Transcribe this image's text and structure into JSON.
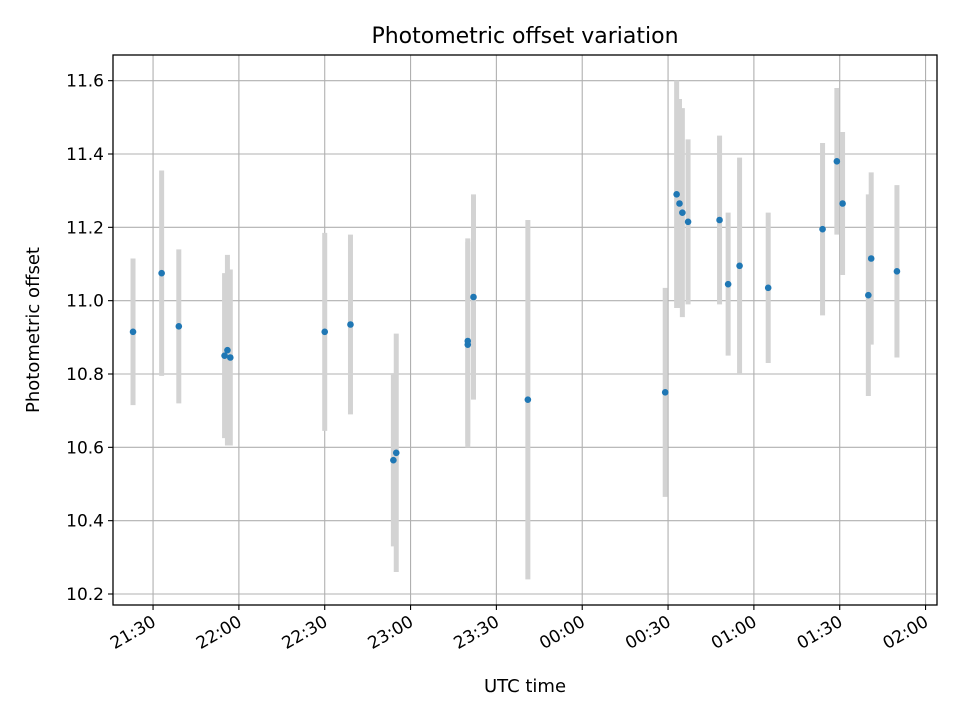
{
  "chart_data": {
    "type": "scatter",
    "title": "Photometric offset variation",
    "xlabel": "UTC time",
    "ylabel": "Photometric offset",
    "x_ticks": [
      "21:30",
      "22:00",
      "22:30",
      "23:00",
      "23:30",
      "00:00",
      "00:30",
      "01:00",
      "01:30",
      "02:00"
    ],
    "y_ticks": [
      "10.2",
      "10.4",
      "10.6",
      "10.8",
      "11.0",
      "11.2",
      "11.4",
      "11.6"
    ],
    "xlim": [
      "21:16",
      "02:04"
    ],
    "ylim": [
      10.17,
      11.67
    ],
    "grid": true,
    "marker_color": "#1f77b4",
    "errorbar_color": "#d3d3d3",
    "points": [
      {
        "x": "21:23",
        "y": 10.915,
        "err": 0.2
      },
      {
        "x": "21:33",
        "y": 11.075,
        "err": 0.28
      },
      {
        "x": "21:39",
        "y": 10.93,
        "err": 0.21
      },
      {
        "x": "21:55",
        "y": 10.85,
        "err": 0.225
      },
      {
        "x": "21:56",
        "y": 10.865,
        "err": 0.26
      },
      {
        "x": "21:57",
        "y": 10.845,
        "err": 0.24
      },
      {
        "x": "22:30",
        "y": 10.915,
        "err": 0.27
      },
      {
        "x": "22:39",
        "y": 10.935,
        "err": 0.245
      },
      {
        "x": "22:54",
        "y": 10.565,
        "err": 0.235
      },
      {
        "x": "22:55",
        "y": 10.585,
        "err": 0.325
      },
      {
        "x": "23:20",
        "y": 10.88,
        "err": 0.28
      },
      {
        "x": "23:20",
        "y": 10.89,
        "err": 0.28
      },
      {
        "x": "23:22",
        "y": 11.01,
        "err": 0.28
      },
      {
        "x": "23:41",
        "y": 10.73,
        "err": 0.49
      },
      {
        "x": "00:29",
        "y": 10.75,
        "err": 0.285
      },
      {
        "x": "00:33",
        "y": 11.29,
        "err": 0.31
      },
      {
        "x": "00:34",
        "y": 11.265,
        "err": 0.285
      },
      {
        "x": "00:35",
        "y": 11.24,
        "err": 0.285
      },
      {
        "x": "00:37",
        "y": 11.215,
        "err": 0.225
      },
      {
        "x": "00:48",
        "y": 11.22,
        "err": 0.23
      },
      {
        "x": "00:51",
        "y": 11.045,
        "err": 0.195
      },
      {
        "x": "00:55",
        "y": 11.095,
        "err": 0.295
      },
      {
        "x": "01:05",
        "y": 11.035,
        "err": 0.205
      },
      {
        "x": "01:24",
        "y": 11.195,
        "err": 0.235
      },
      {
        "x": "01:29",
        "y": 11.38,
        "err": 0.2
      },
      {
        "x": "01:31",
        "y": 11.265,
        "err": 0.195
      },
      {
        "x": "01:40",
        "y": 11.015,
        "err": 0.275
      },
      {
        "x": "01:41",
        "y": 11.115,
        "err": 0.235
      },
      {
        "x": "01:50",
        "y": 11.08,
        "err": 0.235
      }
    ]
  }
}
